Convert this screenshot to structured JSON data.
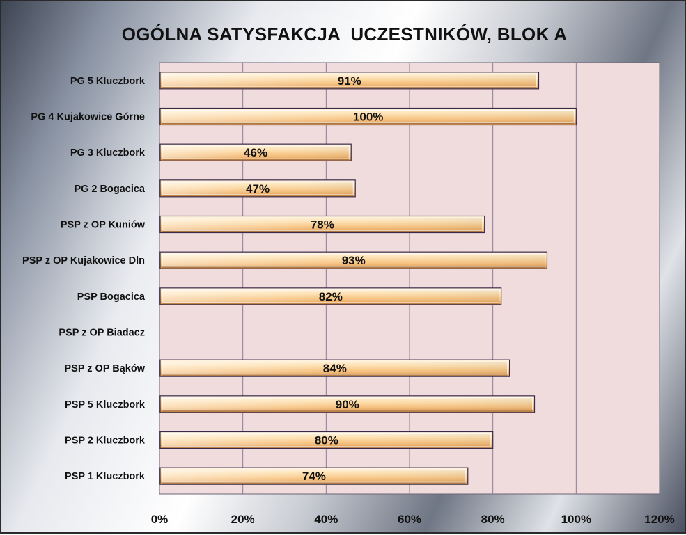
{
  "chart_data": {
    "type": "bar",
    "orientation": "horizontal",
    "title": "OGÓLNA SATYSFAKCJA  UCZESTNIKÓW, BLOK A",
    "categories": [
      "PG 5 Kluczbork",
      "PG 4 Kujakowice Górne",
      "PG 3 Kluczbork",
      "PG 2 Bogacica",
      "PSP z OP Kuniów",
      "PSP z OP Kujakowice Dln",
      "PSP Bogacica",
      "PSP z OP Biadacz",
      "PSP z OP Bąków",
      "PSP 5 Kluczbork",
      "PSP 2 Kluczbork",
      "PSP 1 Kluczbork"
    ],
    "values": [
      91,
      100,
      46,
      47,
      78,
      93,
      82,
      null,
      84,
      90,
      80,
      74
    ],
    "data_labels": [
      "91%",
      "100%",
      "46%",
      "47%",
      "78%",
      "93%",
      "82%",
      "",
      "84%",
      "90%",
      "80%",
      "74%"
    ],
    "xlim": [
      0,
      120
    ],
    "x_ticks": [
      "0%",
      "20%",
      "40%",
      "60%",
      "80%",
      "100%",
      "120%"
    ],
    "grid": "vertical",
    "colors": {
      "bar_fill_light": "#fff3d6",
      "bar_fill_mid": "#f9c98a",
      "bar_fill_dark": "#e3a35a",
      "bar_stroke": "#3a2a48",
      "plot_bg": "#f0dcdc",
      "grid": "#8a7e96"
    }
  }
}
